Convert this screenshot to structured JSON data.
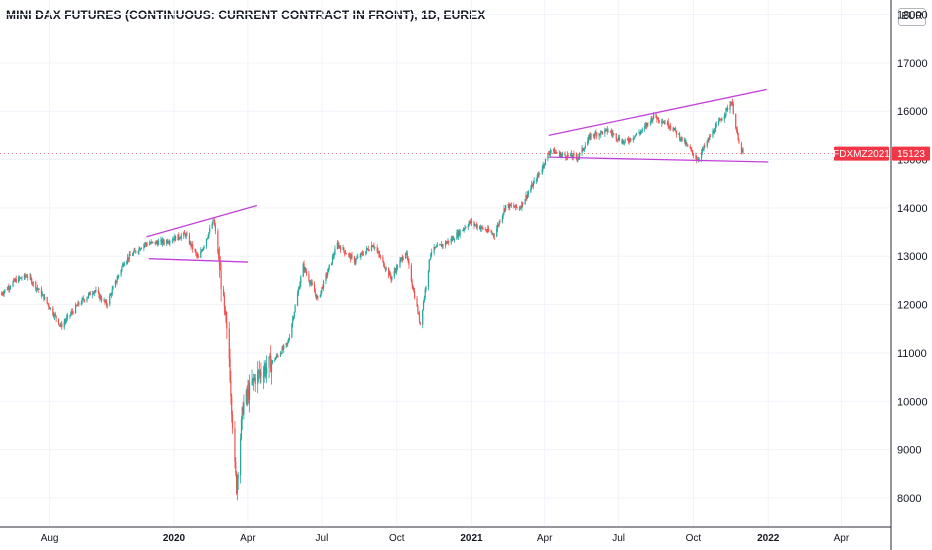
{
  "title": "MINI DAX FUTURES (CONTINUOUS: CURRENT CONTRACT IN FRONT), 1D, EUREX",
  "currency": "EUR",
  "colors": {
    "up": "#26a69a",
    "down": "#ef5350",
    "trendline": "#c242d9",
    "tag": "#f23645",
    "grid": "#f0f3fa",
    "axis": "#2a2e39"
  },
  "price_tag": {
    "symbol": "FDXMZ2021",
    "value": "15123",
    "price": 15123
  },
  "chart_data": {
    "type": "candlestick",
    "title": "MINI DAX FUTURES (CONTINUOUS: CURRENT CONTRACT IN FRONT), 1D, EUREX",
    "ylim": [
      7400,
      18300
    ],
    "y_ticks": [
      "8000",
      "9000",
      "10000",
      "11000",
      "12000",
      "13000",
      "14000",
      "15000",
      "16000",
      "17000",
      "18000"
    ],
    "x_ticks": [
      {
        "label": "Aug",
        "bold": false
      },
      {
        "label": "2020",
        "bold": true
      },
      {
        "label": "Apr",
        "bold": false
      },
      {
        "label": "Jul",
        "bold": false
      },
      {
        "label": "Oct",
        "bold": false
      },
      {
        "label": "2021",
        "bold": true
      },
      {
        "label": "Apr",
        "bold": false
      },
      {
        "label": "Jul",
        "bold": false
      },
      {
        "label": "Oct",
        "bold": false
      },
      {
        "label": "2022",
        "bold": true
      },
      {
        "label": "Apr",
        "bold": false
      }
    ],
    "x_tick_dates": [
      "2019-08-01",
      "2020-01-01",
      "2020-04-01",
      "2020-07-01",
      "2020-10-01",
      "2021-01-01",
      "2021-04-01",
      "2021-07-01",
      "2021-10-01",
      "2022-01-01",
      "2022-04-01"
    ],
    "x_range": [
      "2019-06-01",
      "2022-06-01"
    ],
    "price_path": [
      [
        "2019-06-01",
        12200
      ],
      [
        "2019-06-20",
        12500
      ],
      [
        "2019-07-05",
        12600
      ],
      [
        "2019-07-25",
        12150
      ],
      [
        "2019-08-15",
        11550
      ],
      [
        "2019-09-05",
        12000
      ],
      [
        "2019-09-25",
        12300
      ],
      [
        "2019-10-10",
        12000
      ],
      [
        "2019-11-01",
        12900
      ],
      [
        "2019-11-25",
        13250
      ],
      [
        "2019-12-20",
        13300
      ],
      [
        "2020-01-15",
        13450
      ],
      [
        "2020-01-31",
        12950
      ],
      [
        "2020-02-19",
        13750
      ],
      [
        "2020-02-24",
        13100
      ],
      [
        "2020-03-09",
        10900
      ],
      [
        "2020-03-16",
        8600
      ],
      [
        "2020-03-18",
        8250
      ],
      [
        "2020-03-26",
        9900
      ],
      [
        "2020-04-10",
        10500
      ],
      [
        "2020-04-30",
        10800
      ],
      [
        "2020-05-20",
        11200
      ],
      [
        "2020-06-08",
        12800
      ],
      [
        "2020-06-26",
        12100
      ],
      [
        "2020-07-20",
        13250
      ],
      [
        "2020-08-10",
        12900
      ],
      [
        "2020-09-02",
        13250
      ],
      [
        "2020-09-24",
        12550
      ],
      [
        "2020-10-12",
        13100
      ],
      [
        "2020-10-30",
        11600
      ],
      [
        "2020-11-12",
        13100
      ],
      [
        "2020-12-08",
        13350
      ],
      [
        "2020-12-30",
        13700
      ],
      [
        "2021-01-29",
        13450
      ],
      [
        "2021-02-12",
        14050
      ],
      [
        "2021-03-01",
        14000
      ],
      [
        "2021-03-25",
        14700
      ],
      [
        "2021-04-08",
        15200
      ],
      [
        "2021-04-20",
        15100
      ],
      [
        "2021-05-12",
        15050
      ],
      [
        "2021-05-28",
        15500
      ],
      [
        "2021-06-18",
        15600
      ],
      [
        "2021-07-08",
        15350
      ],
      [
        "2021-07-30",
        15600
      ],
      [
        "2021-08-13",
        15900
      ],
      [
        "2021-09-03",
        15700
      ],
      [
        "2021-09-20",
        15350
      ],
      [
        "2021-10-06",
        15000
      ],
      [
        "2021-10-26",
        15600
      ],
      [
        "2021-11-17",
        16200
      ],
      [
        "2021-11-26",
        15300
      ],
      [
        "2021-12-01",
        15123
      ]
    ],
    "trendlines": [
      {
        "from": [
          "2019-11-28",
          13400
        ],
        "to": [
          "2020-04-12",
          14050
        ]
      },
      {
        "from": [
          "2019-12-01",
          12950
        ],
        "to": [
          "2020-04-01",
          12880
        ]
      },
      {
        "from": [
          "2021-04-06",
          15500
        ],
        "to": [
          "2021-12-30",
          16450
        ]
      },
      {
        "from": [
          "2021-04-06",
          15050
        ],
        "to": [
          "2022-01-01",
          14950
        ]
      }
    ]
  }
}
